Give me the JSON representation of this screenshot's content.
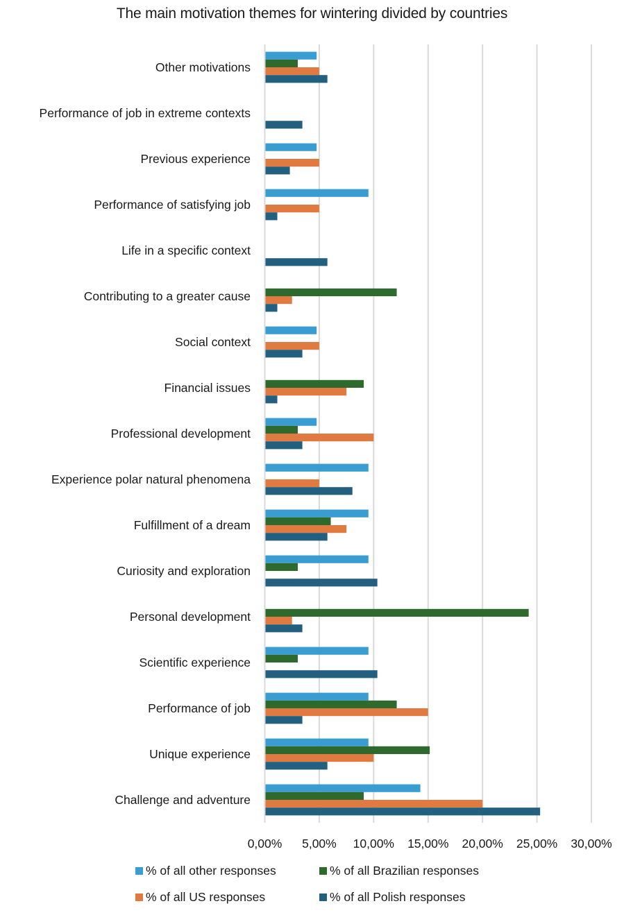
{
  "chart_data": {
    "type": "bar",
    "orientation": "horizontal",
    "title": "The main motivation themes for wintering divided by countries",
    "xlabel": "",
    "ylabel": "",
    "xlim": [
      0,
      30
    ],
    "x_ticks": [
      0,
      5,
      10,
      15,
      20,
      25,
      30
    ],
    "x_tick_labels": [
      "0,00%",
      "5,00%",
      "10,00%",
      "15,00%",
      "20,00%",
      "25,00%",
      "30,00%"
    ],
    "grid": "vertical",
    "legend_position": "bottom",
    "categories": [
      "Other motivations",
      "Performance of job in extreme contexts",
      "Previous experience",
      "Performance of satisfying job",
      "Life in a specific context",
      "Contributing to a greater cause",
      "Social context",
      "Financial issues",
      "Professional development",
      "Experience polar natural phenomena",
      "Fulfillment of a dream",
      "Curiosity and exploration",
      "Personal development",
      "Scientific experience",
      "Performance of job",
      "Unique experience",
      "Challenge and adventure"
    ],
    "series": [
      {
        "name": "% of all other responses",
        "color": "#3A9DD1",
        "values": [
          4.76,
          0,
          4.76,
          9.52,
          0,
          0,
          4.76,
          0,
          4.76,
          9.52,
          9.52,
          9.52,
          0,
          9.52,
          9.52,
          9.52,
          14.29
        ]
      },
      {
        "name": "% of all Brazilian responses",
        "color": "#2E6A2E",
        "values": [
          3.03,
          0,
          0,
          0,
          0,
          12.12,
          0,
          9.09,
          3.03,
          0,
          6.06,
          3.03,
          24.24,
          3.03,
          12.12,
          15.15,
          9.09
        ]
      },
      {
        "name": "% of all US responses",
        "color": "#E07A41",
        "values": [
          5.0,
          0,
          5.0,
          5.0,
          0,
          2.5,
          5.0,
          7.5,
          10.0,
          5.0,
          7.5,
          0,
          2.5,
          0,
          15.0,
          10.0,
          20.0
        ]
      },
      {
        "name": "% of all Polish responses",
        "color": "#235F7F",
        "values": [
          5.75,
          3.45,
          2.3,
          1.15,
          5.75,
          1.15,
          3.45,
          1.15,
          3.45,
          8.05,
          5.75,
          10.34,
          3.45,
          10.34,
          3.45,
          5.75,
          25.29
        ]
      }
    ],
    "legend": [
      {
        "label": "% of all other responses",
        "color": "#3A9DD1"
      },
      {
        "label": "% of all Brazilian responses",
        "color": "#2E6A2E"
      },
      {
        "label": "% of all US responses",
        "color": "#E07A41"
      },
      {
        "label": "% of all Polish responses",
        "color": "#235F7F"
      }
    ],
    "gridline_color": "#D9D9D9"
  }
}
